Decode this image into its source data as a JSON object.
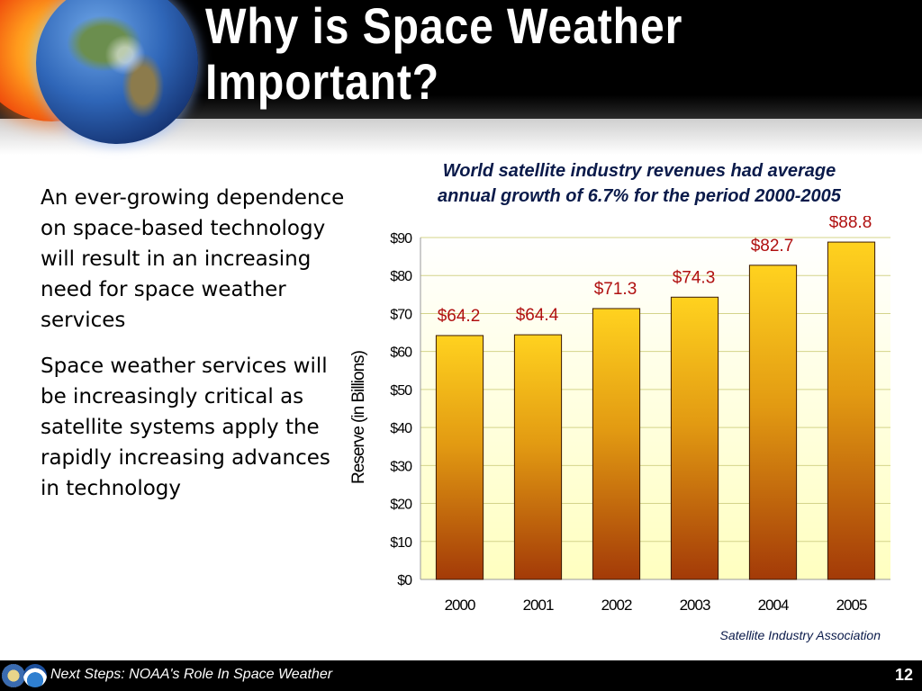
{
  "slide": {
    "title_line1": "Why is Space Weather",
    "title_line2": "Important?"
  },
  "body": {
    "paragraph1": "An ever-growing dependence on space-based technology will result in an increasing need for space weather services",
    "paragraph2": "Space weather services will be increasingly critical as satellite systems apply the rapidly increasing advances in technology"
  },
  "chart_data": {
    "type": "bar",
    "title_line1": "World satellite industry revenues had average",
    "title_line2": "annual growth of 6.7% for the period 2000-2005",
    "categories": [
      "2000",
      "2001",
      "2002",
      "2003",
      "2004",
      "2005"
    ],
    "values": [
      64.2,
      64.4,
      71.3,
      74.3,
      82.7,
      88.8
    ],
    "value_labels": [
      "$64.2",
      "$64.4",
      "$71.3",
      "$74.3",
      "$82.7",
      "$88.8"
    ],
    "ylabel": "Reserve (in Billions)",
    "ylim": [
      0,
      90
    ],
    "yticks": [
      0,
      10,
      20,
      30,
      40,
      50,
      60,
      70,
      80,
      90
    ],
    "ytick_labels": [
      "$0",
      "$10",
      "$20",
      "$30",
      "$40",
      "$50",
      "$60",
      "$70",
      "$80",
      "$90"
    ],
    "grid": true,
    "colors": {
      "bar_top": "#ffd21f",
      "bar_bottom": "#a33a08",
      "value_label": "#b01010",
      "plot_bg_top": "#ffffff",
      "plot_bg_bottom": "#ffffc0",
      "gridline": "#d4d48a"
    },
    "source": "Satellite Industry Association"
  },
  "footer": {
    "text": "Next Steps: NOAA's Role In Space Weather",
    "page_number": "12"
  }
}
